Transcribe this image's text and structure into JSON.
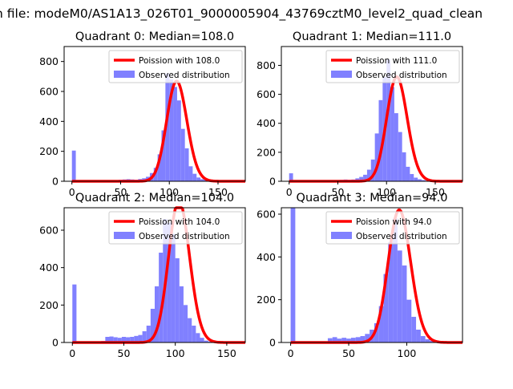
{
  "figure": {
    "suptitle": "n file: modeM0/AS1A13_026T01_9000005904_43769cztM0_level2_quad_clean"
  },
  "chart_data": [
    {
      "type": "histogram",
      "title": "Quadrant 0: Median=108.0",
      "xlabel": "",
      "ylabel": "",
      "xlim": [
        -8,
        178
      ],
      "ylim": [
        0,
        900
      ],
      "xticks": [
        0,
        50,
        100,
        150
      ],
      "yticks": [
        0,
        200,
        400,
        600,
        800
      ],
      "grid": false,
      "legend_position": "top-right",
      "legend": [
        "Poission with 108.0",
        "Observed distribution"
      ],
      "poisson": {
        "name": "Poission with 108.0",
        "mean": 108.0,
        "color": "#ff0000"
      },
      "bins": {
        "start": 0,
        "width": 4,
        "counts": [
          205,
          0,
          0,
          0,
          0,
          0,
          0,
          0,
          4,
          5,
          6,
          8,
          10,
          12,
          14,
          12,
          10,
          15,
          20,
          30,
          55,
          90,
          180,
          340,
          720,
          680,
          630,
          540,
          350,
          220,
          100,
          50,
          25,
          14,
          8,
          3,
          1,
          0,
          0,
          0,
          0,
          0
        ]
      },
      "color_hist": "#8080ff"
    },
    {
      "type": "histogram",
      "title": "Quadrant 1: Median=111.0",
      "xlabel": "",
      "ylabel": "",
      "xlim": [
        -8,
        178
      ],
      "ylim": [
        0,
        930
      ],
      "xticks": [
        0,
        50,
        100,
        150
      ],
      "yticks": [
        0,
        200,
        400,
        600,
        800
      ],
      "grid": false,
      "legend_position": "top-right",
      "legend": [
        "Poission with 111.0",
        "Observed distribution"
      ],
      "poisson": {
        "name": "Poission with 111.0",
        "mean": 111.0,
        "color": "#ff0000"
      },
      "bins": {
        "start": 0,
        "width": 4,
        "counts": [
          55,
          0,
          0,
          0,
          0,
          0,
          0,
          0,
          0,
          4,
          5,
          6,
          8,
          10,
          12,
          10,
          12,
          20,
          30,
          45,
          80,
          150,
          330,
          560,
          720,
          840,
          650,
          470,
          340,
          200,
          100,
          50,
          25,
          14,
          8,
          3,
          1,
          0,
          0,
          0,
          0,
          0
        ]
      },
      "color_hist": "#8080ff"
    },
    {
      "type": "histogram",
      "title": "Quadrant 2: Median=104.0",
      "xlabel": "",
      "ylabel": "",
      "xlim": [
        -8,
        168
      ],
      "ylim": [
        0,
        720
      ],
      "xticks": [
        0,
        50,
        100,
        150
      ],
      "yticks": [
        0,
        200,
        400,
        600
      ],
      "grid": false,
      "legend_position": "top-right",
      "legend": [
        "Poission with 104.0",
        "Observed distribution"
      ],
      "poisson": {
        "name": "Poission with 104.0",
        "mean": 104.0,
        "color": "#ff0000"
      },
      "bins": {
        "start": 0,
        "width": 4,
        "counts": [
          310,
          0,
          0,
          0,
          0,
          0,
          0,
          8,
          30,
          32,
          28,
          25,
          30,
          28,
          30,
          35,
          40,
          60,
          90,
          180,
          300,
          480,
          660,
          640,
          580,
          450,
          300,
          200,
          130,
          90,
          50,
          25,
          10,
          5,
          2,
          1,
          0,
          0,
          0,
          0
        ]
      },
      "color_hist": "#8080ff"
    },
    {
      "type": "histogram",
      "title": "Quadrant 3: Median=94.0",
      "xlabel": "",
      "ylabel": "",
      "xlim": [
        -8,
        148
      ],
      "ylim": [
        0,
        630
      ],
      "xticks": [
        0,
        50,
        100
      ],
      "yticks": [
        0,
        200,
        400,
        600
      ],
      "grid": false,
      "legend_position": "top-right",
      "legend": [
        "Poission with 94.0",
        "Observed distribution"
      ],
      "poisson": {
        "name": "Poission with 94.0",
        "mean": 94.0,
        "color": "#ff0000"
      },
      "bins": {
        "start": 0,
        "width": 4,
        "counts": [
          630,
          0,
          0,
          0,
          0,
          0,
          0,
          0,
          20,
          25,
          18,
          22,
          18,
          22,
          25,
          30,
          40,
          60,
          90,
          170,
          320,
          470,
          580,
          430,
          360,
          200,
          120,
          60,
          30,
          15,
          8,
          3,
          1,
          0,
          0
        ]
      },
      "color_hist": "#8080ff"
    }
  ]
}
